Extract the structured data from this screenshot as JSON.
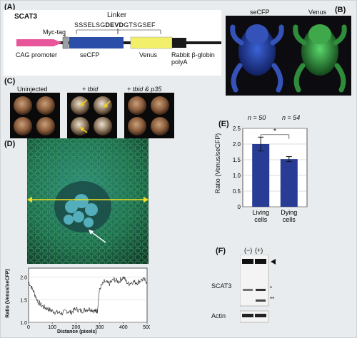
{
  "panelA": {
    "label": "(A)",
    "construct_name": "SCAT3",
    "linker_label": "Linker",
    "linker_seq_pre": "SSSELSG",
    "linker_seq_bold": "DEVD",
    "linker_seq_post": "GTSGSEF",
    "myc_tag": "Myc-tag",
    "cag_promoter": "CAG promoter",
    "secfp": "seCFP",
    "venus": "Venus",
    "globin_line1": "Rabbit β-globin",
    "globin_line2": "polyA",
    "colors": {
      "promoter": "#e8559a",
      "secfp": "#2b4fa8",
      "venus": "#f2ef6a",
      "myc": "#9aa0a6"
    }
  },
  "panelB": {
    "label": "(B)",
    "left_title": "seCFP",
    "right_title": "Venus"
  },
  "panelC": {
    "label": "(C)",
    "titles": [
      "Uninjected",
      "+ tbid",
      "+ tbid & p35"
    ]
  },
  "panelD": {
    "label": "(D)",
    "ylabel": "Ratio (Venus/seCFP)",
    "xlabel": "Distance (pixels)",
    "yticks": [
      "2.0",
      "1.5",
      "1.0"
    ],
    "xticks": [
      "0",
      "100",
      "200",
      "300",
      "400",
      "500"
    ]
  },
  "panelE": {
    "label": "(E)",
    "n_left": "n = 50",
    "n_right": "n = 54",
    "significance": "*",
    "ylabel": "Ratio (Venus/seCFP)"
  },
  "panelF": {
    "label": "(F)",
    "lanes": [
      "(−)",
      "(+)"
    ],
    "protein": "SCAT3",
    "loading": "Actin",
    "marker_star": "*",
    "marker_doublestar": "**"
  },
  "chart_data": [
    {
      "type": "bar",
      "categories": [
        "Living cells",
        "Dying cells"
      ],
      "values": [
        2.0,
        1.52
      ],
      "errors": [
        0.22,
        0.08
      ],
      "ylabel": "Ratio (Venus/seCFP)",
      "ylim": [
        0,
        2.5
      ],
      "yticks": [
        "0",
        "0.5",
        "1.0",
        "1.5",
        "2.0",
        "2.5"
      ],
      "grid": true,
      "bar_color": "#283c96"
    },
    {
      "type": "line",
      "xlabel": "Distance (pixels)",
      "ylabel": "Ratio (Venus/seCFP)",
      "xlim": [
        0,
        500
      ],
      "ylim": [
        1.0,
        2.2
      ],
      "x": [
        0,
        20,
        40,
        60,
        80,
        100,
        120,
        140,
        160,
        180,
        200,
        220,
        240,
        260,
        280,
        290,
        300,
        320,
        340,
        360,
        380,
        400,
        420,
        440,
        460,
        480,
        500
      ],
      "y": [
        1.9,
        1.7,
        1.45,
        1.35,
        1.3,
        1.25,
        1.22,
        1.2,
        1.25,
        1.22,
        1.3,
        1.25,
        1.28,
        1.3,
        1.25,
        1.25,
        1.75,
        1.9,
        1.85,
        1.95,
        1.9,
        2.0,
        1.85,
        1.9,
        1.88,
        1.95,
        1.9
      ]
    }
  ]
}
